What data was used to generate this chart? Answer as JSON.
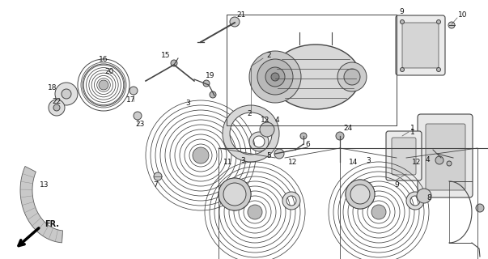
{
  "bg_color": "#ffffff",
  "lc": "#444444",
  "fig_width": 6.03,
  "fig_height": 3.2,
  "dpi": 100
}
